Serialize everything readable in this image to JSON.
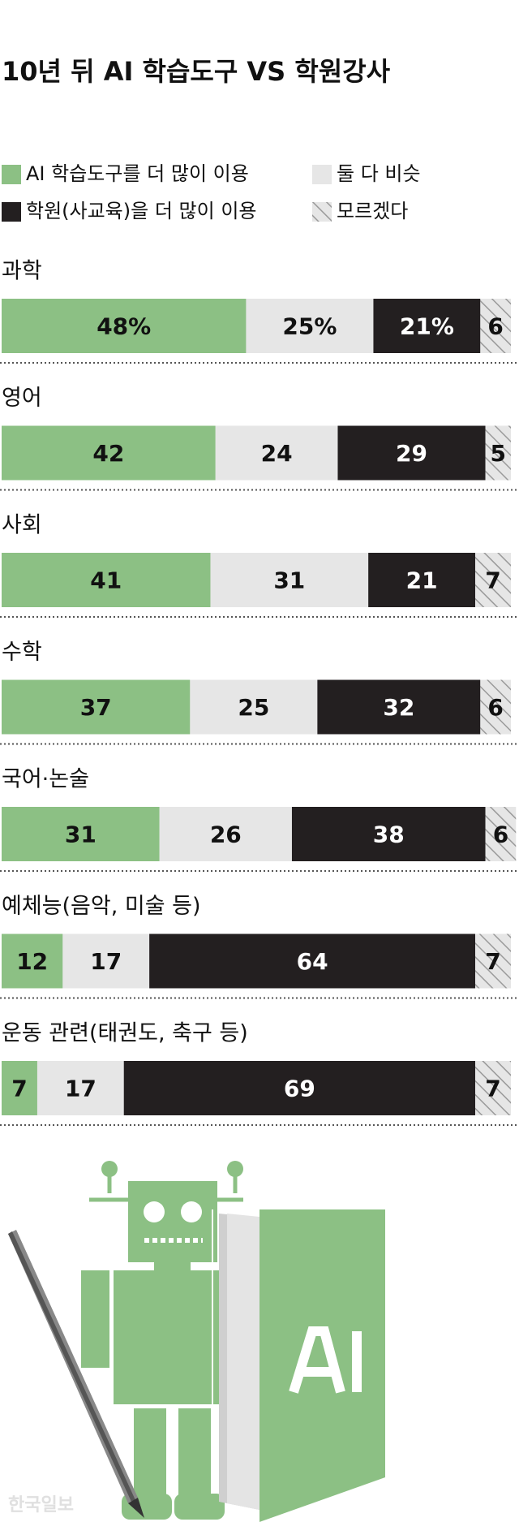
{
  "chart_data": {
    "type": "bar",
    "orientation": "horizontal",
    "stacked": true,
    "title": "10년 뒤 AI 학습도구 VS 학원강사",
    "categories": [
      "과학",
      "영어",
      "사회",
      "수학",
      "국어·논술",
      "예체능(음악, 미술 등)",
      "운동 관련(태권도, 축구 등)"
    ],
    "xlim": [
      0,
      100
    ],
    "series": [
      {
        "name": "AI 학습도구를 더 많이 이용",
        "color": "#8cc084",
        "values": [
          48,
          42,
          41,
          37,
          31,
          12,
          7
        ],
        "value_labels": [
          "48%",
          "42",
          "41",
          "37",
          "31",
          "12",
          "7"
        ]
      },
      {
        "name": "둘 다 비슷",
        "color": "#e6e6e6",
        "values": [
          25,
          24,
          31,
          25,
          26,
          17,
          17
        ],
        "value_labels": [
          "25%",
          "24",
          "31",
          "25",
          "26",
          "17",
          "17"
        ]
      },
      {
        "name": "학원(사교육)을 더 많이 이용",
        "color": "#231f20",
        "values": [
          21,
          29,
          21,
          32,
          38,
          64,
          69
        ],
        "value_labels": [
          "21%",
          "29",
          "21",
          "32",
          "38",
          "64",
          "69"
        ]
      },
      {
        "name": "모르겠다",
        "color": "hatch",
        "values": [
          6,
          5,
          7,
          6,
          6,
          7,
          7
        ]
      }
    ],
    "watermark": "한국일보"
  }
}
